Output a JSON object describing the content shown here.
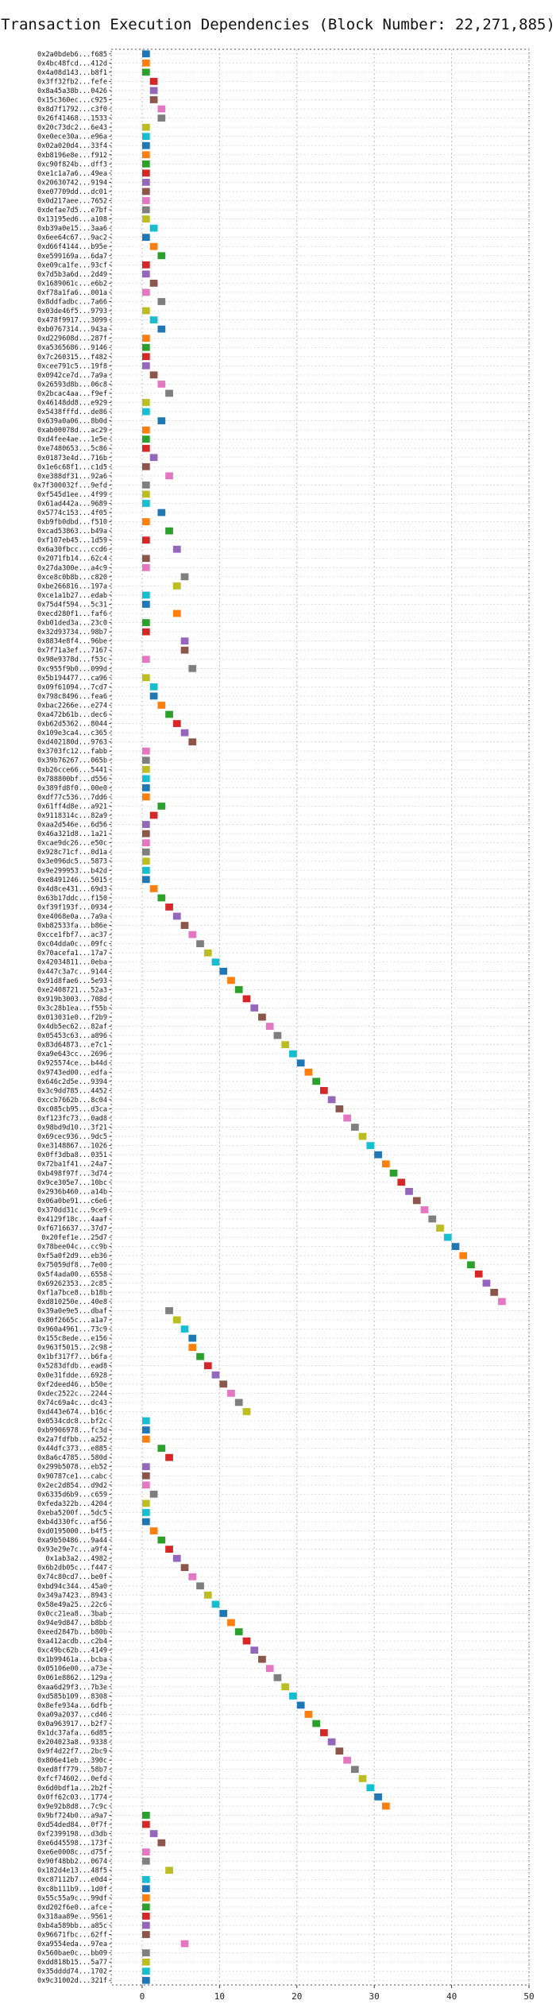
{
  "chart_data": {
    "type": "bar",
    "title": "Transaction Execution Dependencies (Block Number: 22,271,885)",
    "xlabel": "",
    "ylabel": "",
    "xlim": [
      -4,
      50
    ],
    "xticks": [
      "0",
      "10",
      "20",
      "30",
      "40",
      "50"
    ],
    "grid": "dotted",
    "palette": [
      "#1f77b4",
      "#ff7f0e",
      "#2ca02c",
      "#d62728",
      "#9467bd",
      "#8c564b",
      "#e377c2",
      "#7f7f7f",
      "#bcbd22",
      "#17becf"
    ],
    "transactions": [
      "0x2a0bdeb6...f685",
      "0x4bc48fcd...412d",
      "0x4a08d143...b8f1",
      "0x3ff32fb2...fefe",
      "0x8a45a38b...0426",
      "0x15c360ec...c925",
      "0x8d7f1792...c3f0",
      "0x26f41468...1533",
      "0x20c73dc2...6e43",
      "0xe0ece30a...e96a",
      "0x02a020d4...33f4",
      "0xb8196e8e...f912",
      "0xc90f824b...dff3",
      "0xe1c1a7a6...49ea",
      "0x20630742...9194",
      "0xe07709dd...dc01",
      "0x0d217aee...7652",
      "0xdefae7d5...e7bf",
      "0x13195ed6...a108",
      "0xb39a0e15...3aa6",
      "0x6ee64c67...9ac2",
      "0xd66f4144...b95e",
      "0xe599169a...6da7",
      "0xe09ca1fe...93cf",
      "0x7d5b3a6d...2d49",
      "0x1689061c...e6b2",
      "0xf78a1fa6...001a",
      "0x8ddfadbc...7a66",
      "0x03de46f5...9793",
      "0x478f9917...3099",
      "0xb0767314...943a",
      "0xd229608d...287f",
      "0xa5365686...9146",
      "0x7c260315...f482",
      "0xcee791c5...19f8",
      "0x0942ce7d...7a9a",
      "0x26593d8b...06c8",
      "0x2bcac4aa...f9ef",
      "0x46148dd8...e929",
      "0x5438fffd...de86",
      "0x639a0a06...8b0d",
      "0xab00078d...ac29",
      "0xd4fee4ae...1e5e",
      "0xe7480653...5c86",
      "0x01873e4d...716b",
      "0x1e6c68f1...c1d5",
      "0xe388df31...92a6",
      "0x7f300032f...9efd",
      "0xf545d1ee...4f99",
      "0x61ad442a...9689",
      "0x5774c153...4f05",
      "0xb9fb0dbd...f510",
      "0xcad53863...b49a",
      "0xf107eb45...1d59",
      "0x6a30fbcc...ccd6",
      "0x2071fb14...62c4",
      "0x27da300e...a4c9",
      "0xce8c0b8b...c820",
      "0xbe266816...197a",
      "0xce1a1b27...edab",
      "0x75d4f594...5c31",
      "0xecd280f1...faf6",
      "0xb01ded3a...23c0",
      "0x32d93734...98b7",
      "0x8834e8f4...96be",
      "0x7f71a3ef...7167",
      "0x98e9378d...f53c",
      "0xc955f9b0...099d",
      "0x5b194477...ca96",
      "0x09f61094...7cd7",
      "0x798c8496...fea6",
      "0xbac2266e...e274",
      "0xa472b61b...dec6",
      "0xb62d5362...8044",
      "0x109e3ca4...c365",
      "0xd402180d...9763",
      "0x3703fc12...fabb",
      "0x39b76267...065b",
      "0xb26cce66...5441",
      "0x788800bf...d556",
      "0x389fd8f0...00e0",
      "0xdf77c536...7dd6",
      "0x61ff4d8e...a921",
      "0x9118314c...82a9",
      "0xaa2d546e...6d56",
      "0x46a321d8...1a21",
      "0xcae9dc26...e50c",
      "0x928c71cf...0d1a",
      "0x3e096dc5...5873",
      "0x9e299953...b42d",
      "0xe8491246...5015",
      "0x4d8ce431...69d3",
      "0x63b17ddc...f150",
      "0xf39f193f...0934",
      "0xe4068e0a...7a9a",
      "0xb82533fa...b86e",
      "0xcce1fbf7...ac37",
      "0xc04dda0c...09fc",
      "0x70acefa1...17a7",
      "0x42034811...0eba",
      "0x447c3a7c...9144",
      "0x91d8fae6...5e93",
      "0xe2408721...52a3",
      "0x919b3003...708d",
      "0x3c28b1ea...f55b",
      "0x013031e0...f2b9",
      "0x4db5ec62...82af",
      "0x05453c63...a896",
      "0x83d64873...e7c1",
      "0xa9e643cc...2696",
      "0x925574ce...b44d",
      "0x9743ed00...edfa",
      "0x646c2d5e...9394",
      "0x3c9dd785...4452",
      "0xccb7662b...8c04",
      "0xc085cb95...d3ca",
      "0xf123fc73...0ad8",
      "0x98bd9d10...3f21",
      "0x69cec936...9dc5",
      "0xe3148867...1026",
      "0x0ff3dba8...0351",
      "0x72ba1f41...24a7",
      "0xb498f97f...3d74",
      "0x9ce305e7...10bc",
      "0x2936b460...a14b",
      "0x06a0be91...c6e6",
      "0x370dd31c...9ce9",
      "0x4129f18c...4aaf",
      "0xf6716637...37d7",
      "0x20fef1e...25d7",
      "0x78bee04c...cc9b",
      "0xf5a0f2d9...eb36",
      "0x75059df8...7e00",
      "0x5f4ada00...6558",
      "0x69262353...2c85",
      "0xf1a7bce8...b18b",
      "0xd810250e...40e8",
      "0x39a0e9e5...dbaf",
      "0x80f2665c...a1a7",
      "0x960a4961...73c9",
      "0x155c8ede...e156",
      "0x963f5015...2c98",
      "0x1bf317f7...b6fa",
      "0x5283dfdb...ead8",
      "0x0e31fdde...6928",
      "0xf2deed46...b50e",
      "0xdec2522c...2244",
      "0x74c69a4c...dc43",
      "0xd443e674...b16c",
      "0x0534cdc8...bf2c",
      "0xb9906978...fc3d",
      "0x2a7fdfbb...a252",
      "0x44dfc373...e885",
      "0x8a6c4785...580d",
      "0x299b5078...eb52",
      "0x90787ce1...cabc",
      "0x2ec2d854...d9d2",
      "0x6335d6b9...c659",
      "0xfeda322b...4204",
      "0xeba5200f...5dc5",
      "0xb4d330fc...af56",
      "0xd0195000...b4f5",
      "0xa9b50486...9a44",
      "0x93e29e7c...a9f4",
      "0x1ab3a2...4982",
      "0x6b2db05c...f447",
      "0x74c80cd7...be0f",
      "0xbd94c344...45a0",
      "0x349a7423...8943",
      "0x58e49a25...22c6",
      "0x0cc21ea8...3bab",
      "0x94e9d847...b8bb",
      "0xeed2847b...b80b",
      "0xa412acdb...c2b4",
      "0xc49bc62b...4149",
      "0x1b99461a...bcba",
      "0x05106e00...a73e",
      "0x061e8862...129a",
      "0xaa6d29f3...7b3e",
      "0xd585b109...8308",
      "0x8efe934a...6dfb",
      "0xa09a2037...cd46",
      "0x0a963917...b2f7",
      "0x1dc37afa...6d85",
      "0x204023a8...9338",
      "0x9f4d22f7...2bc9",
      "0x806e41eb...390c",
      "0xed8ff779...58b7",
      "0xfcf74602...0efd",
      "0x6d0bdf1a...2b2f",
      "0x0ff62c03...1774",
      "0x9e92b8d8...7c9c",
      "0x9bf724b0...a9a7",
      "0xd54ded84...0f7f",
      "0xf2399198...d3db",
      "0xe6d45598...173f",
      "0xe6e0008c...d75f",
      "0x90f48bb2...0674",
      "0x182d4e13...48f5",
      "0xc87112b7...e0d4",
      "0xc8b111b9...1d0f",
      "0x55c55a9c...99df",
      "0xd202f6e0...afce",
      "0x318aa89e...9561",
      "0xb4a589bb...a85c",
      "0x96671fbc...62ff",
      "0xa9554eda...97ea",
      "0x560bae0c...bb09",
      "0xdd818b15...5a77",
      "0x35dddd74...1702",
      "0x9c31002d...321f"
    ],
    "start": [
      0,
      0,
      0,
      1,
      1,
      1,
      2,
      2,
      0,
      0,
      0,
      0,
      0,
      0,
      0,
      0,
      0,
      0,
      0,
      1,
      0,
      1,
      2,
      0,
      0,
      1,
      0,
      2,
      0,
      1,
      2,
      0,
      0,
      0,
      0,
      1,
      2,
      3,
      0,
      0,
      2,
      0,
      0,
      0,
      1,
      0,
      3,
      0,
      0,
      0,
      2,
      0,
      3,
      0,
      4,
      0,
      0,
      5,
      4,
      0,
      0,
      4,
      0,
      0,
      5,
      5,
      0,
      6,
      0,
      1,
      1,
      2,
      3,
      4,
      5,
      6,
      0,
      0,
      0,
      0,
      0,
      0,
      2,
      1,
      0,
      0,
      0,
      0,
      0,
      0,
      0,
      1,
      2,
      3,
      4,
      5,
      6,
      7,
      8,
      9,
      10,
      11,
      12,
      13,
      14,
      15,
      16,
      17,
      18,
      19,
      20,
      21,
      22,
      23,
      24,
      25,
      26,
      27,
      28,
      29,
      30,
      31,
      32,
      33,
      34,
      35,
      36,
      37,
      38,
      39,
      40,
      41,
      42,
      43,
      44,
      45,
      46,
      3,
      4,
      5,
      6,
      6,
      7,
      8,
      9,
      10,
      11,
      12,
      13,
      0,
      0,
      0,
      2,
      3,
      0,
      0,
      0,
      1,
      0,
      0,
      0,
      1,
      2,
      3,
      4,
      5,
      6,
      7,
      8,
      9,
      10,
      11,
      12,
      13,
      14,
      15,
      16,
      17,
      18,
      19,
      20,
      21,
      22,
      23,
      24,
      25,
      26,
      27,
      28,
      29,
      30,
      31,
      0,
      0,
      1,
      2,
      0,
      0,
      3,
      0,
      0,
      0,
      0,
      0,
      0,
      0,
      5,
      0,
      0,
      0,
      0
    ],
    "duration": 1
  }
}
